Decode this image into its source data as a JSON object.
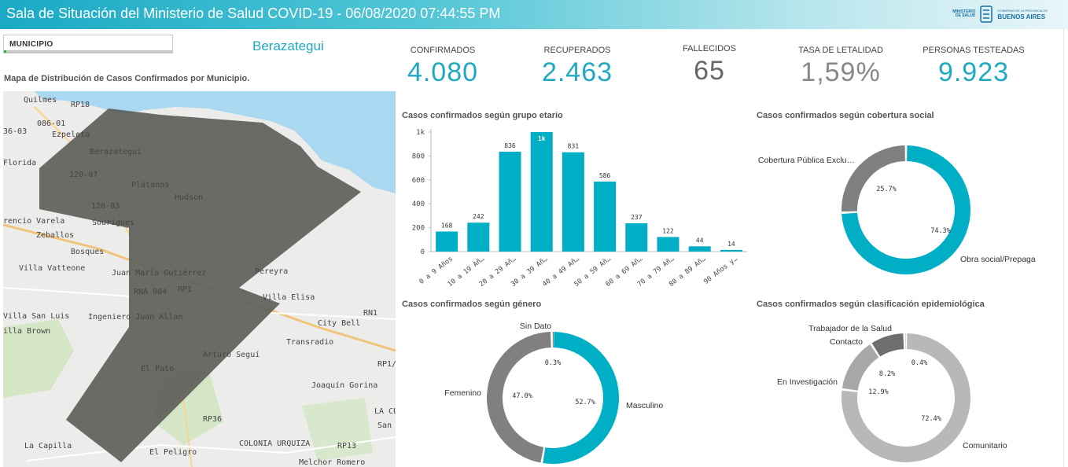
{
  "header": {
    "title": "Sala de Situación del Ministerio de Salud COVID-19 - 06/08/2020 07:44:55 PM",
    "logo_line1": "MINISTERIO DE SALUD",
    "logo_line2_small": "GOBIERNO DE LA PROVINCIA DE",
    "logo_line2": "BUENOS AIRES"
  },
  "filter": {
    "label": "MUNICIPIO",
    "selected": "Berazategui"
  },
  "map": {
    "title": "Mapa de Distribución de Casos Confirmados por Municipio.",
    "places": [
      "Quilmes",
      "RP18",
      "086-01",
      "Ezpeleta",
      "36-03",
      "Berazategui",
      "Florida",
      "120-07",
      "Plátanos",
      "Hudson",
      "120-03",
      "rencio Varela",
      "Zeballos",
      "Sourigues",
      "Bosques",
      "Villa Vatteone",
      "Juan María Gutiérrez",
      "RNA 004",
      "RP1",
      "Pereyra",
      "Villa Elisa",
      "RN1",
      "Villa San Luis",
      "Ingeniero Juan Allan",
      "City Bell",
      "illa Brown",
      "Transradio",
      "Arturo Seguí",
      "El Pato",
      "RP1/",
      "Joaquín Gorina",
      "RP36",
      "LA CU",
      "San C",
      "COLONIA URQUIZA",
      "RP13",
      "La Capilla",
      "El Peligro",
      "Melchor Romero"
    ]
  },
  "kpis": [
    {
      "label": "CONFIRMADOS",
      "value": "4.080",
      "color": "#1fa9c2"
    },
    {
      "label": "RECUPERADOS",
      "value": "2.463",
      "color": "#1fa9c2"
    },
    {
      "label": "FALLECIDOS",
      "value": "65",
      "color": "#666666"
    },
    {
      "label": "TASA DE LETALIDAD",
      "value": "1,59%",
      "color": "#888888"
    },
    {
      "label": "PERSONAS TESTEADAS",
      "value": "9.923",
      "color": "#1fa9c2"
    }
  ],
  "age_chart": {
    "title": "Casos confirmados según grupo etario",
    "chart_data": {
      "type": "bar",
      "categories": [
        "0 a 9 Años",
        "10 a 19 Añ…",
        "20 a 29 Añ…",
        "30 a 39 Añ…",
        "40 a 49 Añ…",
        "50 a 59 Añ…",
        "60 a 69 Añ…",
        "70 a 79 Añ…",
        "80 a 89 Añ…",
        "90 Años y…"
      ],
      "values": [
        168,
        242,
        836,
        1000,
        831,
        586,
        237,
        122,
        44,
        14
      ],
      "data_labels": [
        "168",
        "242",
        "836",
        "1k",
        "831",
        "586",
        "237",
        "122",
        "44",
        "14"
      ],
      "ylim": [
        0,
        1000
      ],
      "yticks": [
        0,
        200,
        400,
        600,
        800,
        1000
      ],
      "ytick_labels": [
        "0",
        "200",
        "400",
        "600",
        "800",
        "1k"
      ],
      "color": "#00aec6"
    }
  },
  "coverage_chart": {
    "title": "Casos confirmados según cobertura social",
    "chart_data": {
      "type": "pie",
      "labels": [
        "Obra social/Prepaga",
        "Cobertura Pública Exclu…"
      ],
      "values": [
        74.3,
        25.7
      ],
      "value_labels": [
        "74.3%",
        "25.7%"
      ],
      "colors": [
        "#00aec6",
        "#808080"
      ]
    }
  },
  "gender_chart": {
    "title": "Casos confirmados según género",
    "chart_data": {
      "type": "pie",
      "labels": [
        "Masculino",
        "Femenino",
        "Sin Dato"
      ],
      "values": [
        52.7,
        47.0,
        0.3
      ],
      "value_labels": [
        "52.7%",
        "47.0%",
        "0.3%"
      ],
      "colors": [
        "#00aec6",
        "#808080",
        "#4d4d4d"
      ]
    }
  },
  "epi_chart": {
    "title": "Casos confirmados según clasificación epidemiológica",
    "chart_data": {
      "type": "pie",
      "labels": [
        "Comunitario",
        "En Investigación",
        "Contacto",
        "Trabajador de la Salud"
      ],
      "values": [
        72.4,
        12.9,
        8.2,
        0.4
      ],
      "value_labels": [
        "72.4%",
        "12.9%",
        "8.2%",
        "0.4%"
      ],
      "colors": [
        "#b8b8b8",
        "#a8a8a8",
        "#6e6e6e",
        "#c6c6c6"
      ]
    }
  }
}
